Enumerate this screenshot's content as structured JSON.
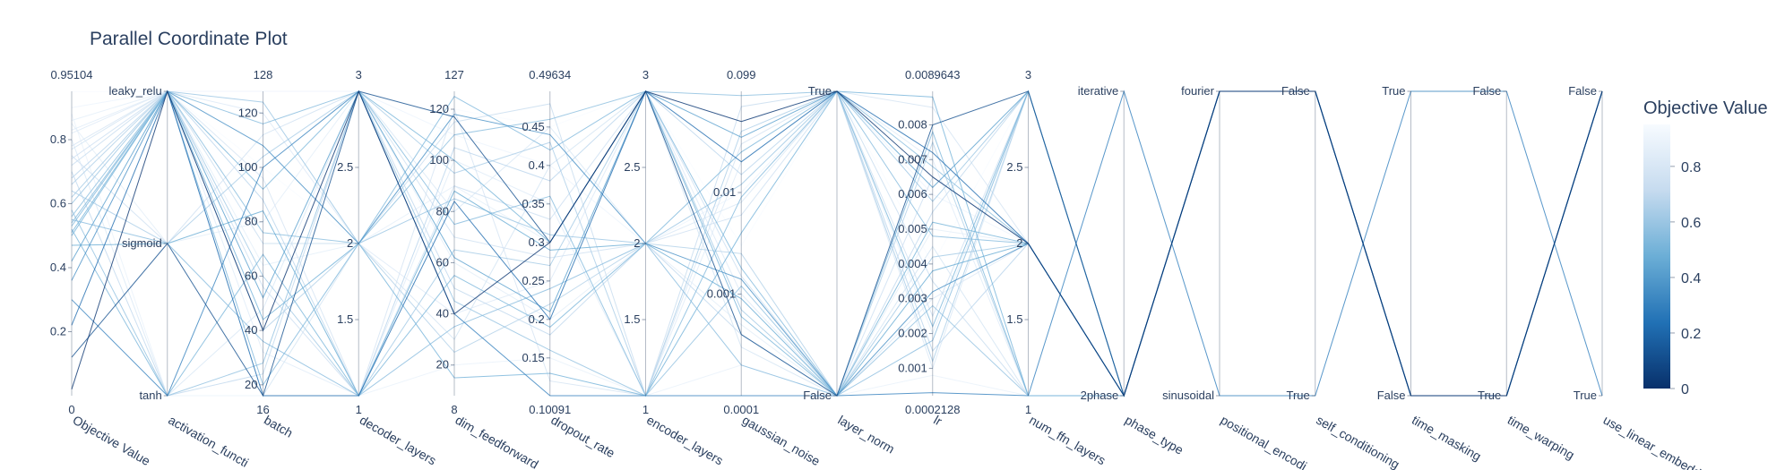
{
  "chart_data": {
    "type": "parallel_coordinates",
    "title": "Parallel Coordinate Plot",
    "colorscale": "Blues",
    "colorbar": {
      "title": "Objective Value",
      "ticks": [
        "0",
        "0.2",
        "0.4",
        "0.6",
        "0.8"
      ],
      "range": [
        0,
        0.95104
      ]
    },
    "axes": [
      {
        "name": "Objective Value",
        "label": "Objective Value",
        "kind": "numeric",
        "range": [
          0,
          0.95104
        ],
        "min_label": "0",
        "max_label": "0.95104",
        "ticks": [
          {
            "v": 0.2,
            "t": "0.2"
          },
          {
            "v": 0.4,
            "t": "0.4"
          },
          {
            "v": 0.6,
            "t": "0.6"
          },
          {
            "v": 0.8,
            "t": "0.8"
          }
        ]
      },
      {
        "name": "activation_function",
        "label": "activation_functi",
        "kind": "categorical",
        "categories": [
          "tanh",
          "sigmoid",
          "leaky_relu"
        ],
        "ticks": []
      },
      {
        "name": "batch",
        "label": "batch",
        "kind": "numeric",
        "range": [
          16,
          128
        ],
        "min_label": "16",
        "max_label": "128",
        "ticks": [
          {
            "v": 20,
            "t": "20"
          },
          {
            "v": 40,
            "t": "40"
          },
          {
            "v": 60,
            "t": "60"
          },
          {
            "v": 80,
            "t": "80"
          },
          {
            "v": 100,
            "t": "100"
          },
          {
            "v": 120,
            "t": "120"
          }
        ]
      },
      {
        "name": "decoder_layers",
        "label": "decoder_layers",
        "kind": "numeric",
        "range": [
          1,
          3
        ],
        "min_label": "1",
        "max_label": "3",
        "ticks": [
          {
            "v": 1.5,
            "t": "1.5"
          },
          {
            "v": 2,
            "t": "2"
          },
          {
            "v": 2.5,
            "t": "2.5"
          }
        ]
      },
      {
        "name": "dim_feedforward",
        "label": "dim_feedforward",
        "kind": "numeric",
        "range": [
          8,
          127
        ],
        "min_label": "8",
        "max_label": "127",
        "ticks": [
          {
            "v": 20,
            "t": "20"
          },
          {
            "v": 40,
            "t": "40"
          },
          {
            "v": 60,
            "t": "60"
          },
          {
            "v": 80,
            "t": "80"
          },
          {
            "v": 100,
            "t": "100"
          },
          {
            "v": 120,
            "t": "120"
          }
        ]
      },
      {
        "name": "dropout_rate",
        "label": "dropout_rate",
        "kind": "numeric",
        "range": [
          0.10091,
          0.49634
        ],
        "min_label": "0.10091",
        "max_label": "0.49634",
        "ticks": [
          {
            "v": 0.15,
            "t": "0.15"
          },
          {
            "v": 0.2,
            "t": "0.2"
          },
          {
            "v": 0.25,
            "t": "0.25"
          },
          {
            "v": 0.3,
            "t": "0.3"
          },
          {
            "v": 0.35,
            "t": "0.35"
          },
          {
            "v": 0.4,
            "t": "0.4"
          },
          {
            "v": 0.45,
            "t": "0.45"
          }
        ]
      },
      {
        "name": "encoder_layers",
        "label": "encoder_layers",
        "kind": "numeric",
        "range": [
          1,
          3
        ],
        "min_label": "1",
        "max_label": "3",
        "ticks": [
          {
            "v": 1.5,
            "t": "1.5"
          },
          {
            "v": 2,
            "t": "2"
          },
          {
            "v": 2.5,
            "t": "2.5"
          }
        ]
      },
      {
        "name": "gaussian_noise",
        "label": "gaussian_noise",
        "kind": "log",
        "range": [
          0.0001,
          0.099
        ],
        "min_label": "0.0001",
        "max_label": "0.099",
        "ticks": [
          {
            "v": 0.001,
            "t": "0.001"
          },
          {
            "v": 0.01,
            "t": "0.01"
          }
        ]
      },
      {
        "name": "layer_norm",
        "label": "layer_norm",
        "kind": "categorical",
        "categories": [
          "False",
          "True"
        ],
        "ticks": []
      },
      {
        "name": "lr",
        "label": "lr",
        "kind": "numeric",
        "range": [
          0.0002128,
          0.0089643
        ],
        "min_label": "0.0002128",
        "max_label": "0.0089643",
        "ticks": [
          {
            "v": 0.001,
            "t": "0.001"
          },
          {
            "v": 0.002,
            "t": "0.002"
          },
          {
            "v": 0.003,
            "t": "0.003"
          },
          {
            "v": 0.004,
            "t": "0.004"
          },
          {
            "v": 0.005,
            "t": "0.005"
          },
          {
            "v": 0.006,
            "t": "0.006"
          },
          {
            "v": 0.007,
            "t": "0.007"
          },
          {
            "v": 0.008,
            "t": "0.008"
          }
        ]
      },
      {
        "name": "num_ffn_layers",
        "label": "num_ffn_layers",
        "kind": "numeric",
        "range": [
          1,
          3
        ],
        "min_label": "1",
        "max_label": "3",
        "ticks": [
          {
            "v": 1.5,
            "t": "1.5"
          },
          {
            "v": 2,
            "t": "2"
          },
          {
            "v": 2.5,
            "t": "2.5"
          }
        ]
      },
      {
        "name": "phase_type",
        "label": "phase_type",
        "kind": "categorical",
        "categories": [
          "2phase",
          "iterative"
        ],
        "ticks": []
      },
      {
        "name": "positional_encoding",
        "label": "positional_encodi",
        "kind": "categorical",
        "categories": [
          "sinusoidal",
          "fourier"
        ],
        "ticks": []
      },
      {
        "name": "self_conditioning",
        "label": "self_conditioning",
        "kind": "categorical",
        "categories": [
          "True",
          "False"
        ],
        "ticks": []
      },
      {
        "name": "time_masking",
        "label": "time_masking",
        "kind": "categorical",
        "categories": [
          "False",
          "True"
        ],
        "ticks": []
      },
      {
        "name": "time_warping",
        "label": "time_warping",
        "kind": "categorical",
        "categories": [
          "True",
          "False"
        ],
        "ticks": []
      },
      {
        "name": "use_linear_embedding",
        "label": "use_linear_embedd",
        "kind": "categorical",
        "categories": [
          "True",
          "False"
        ],
        "ticks": []
      }
    ],
    "trials": [
      [
        0.95,
        2,
        100,
        2,
        120,
        0.45,
        3,
        0.003,
        1,
        0.004,
        3,
        0,
        1,
        1,
        0,
        0,
        1
      ],
      [
        0.9,
        2,
        128,
        3,
        110,
        0.4,
        2,
        0.01,
        1,
        0.006,
        2,
        0,
        1,
        1,
        0,
        0,
        1
      ],
      [
        0.88,
        0,
        16,
        1,
        20,
        0.15,
        1,
        0.0002,
        0,
        0.0008,
        1,
        1,
        0,
        0,
        1,
        1,
        0
      ],
      [
        0.86,
        2,
        64,
        2,
        90,
        0.3,
        3,
        0.05,
        1,
        0.002,
        3,
        0,
        1,
        1,
        0,
        0,
        1
      ],
      [
        0.85,
        1,
        80,
        3,
        60,
        0.2,
        2,
        0.0005,
        0,
        0.005,
        2,
        0,
        1,
        1,
        0,
        0,
        1
      ],
      [
        0.83,
        2,
        32,
        1,
        100,
        0.35,
        1,
        0.02,
        1,
        0.007,
        1,
        0,
        1,
        1,
        0,
        0,
        1
      ],
      [
        0.82,
        2,
        120,
        2,
        40,
        0.25,
        3,
        0.001,
        0,
        0.003,
        2,
        0,
        1,
        1,
        0,
        0,
        1
      ],
      [
        0.8,
        0,
        48,
        3,
        80,
        0.45,
        2,
        0.008,
        1,
        0.001,
        3,
        0,
        1,
        1,
        0,
        0,
        1
      ],
      [
        0.78,
        2,
        96,
        1,
        120,
        0.12,
        1,
        0.03,
        1,
        0.0085,
        2,
        0,
        1,
        1,
        0,
        0,
        1
      ],
      [
        0.77,
        2,
        16,
        2,
        30,
        0.4,
        3,
        0.0003,
        0,
        0.0045,
        1,
        0,
        1,
        1,
        0,
        0,
        1
      ],
      [
        0.75,
        1,
        112,
        3,
        70,
        0.28,
        2,
        0.006,
        1,
        0.0025,
        3,
        0,
        1,
        1,
        0,
        0,
        1
      ],
      [
        0.74,
        2,
        56,
        1,
        90,
        0.33,
        3,
        0.0015,
        0,
        0.0065,
        2,
        0,
        1,
        1,
        0,
        0,
        1
      ],
      [
        0.72,
        2,
        72,
        2,
        115,
        0.48,
        1,
        0.07,
        1,
        0.0035,
        1,
        0,
        1,
        1,
        0,
        0,
        1
      ],
      [
        0.7,
        0,
        24,
        3,
        50,
        0.18,
        2,
        0.0004,
        0,
        0.0055,
        3,
        0,
        1,
        1,
        0,
        0,
        1
      ],
      [
        0.68,
        2,
        88,
        1,
        105,
        0.38,
        3,
        0.015,
        1,
        0.0015,
        2,
        0,
        1,
        1,
        0,
        0,
        1
      ],
      [
        0.66,
        2,
        40,
        2,
        25,
        0.22,
        2,
        0.0025,
        0,
        0.0075,
        1,
        0,
        1,
        1,
        0,
        0,
        1
      ],
      [
        0.64,
        1,
        104,
        3,
        95,
        0.43,
        1,
        0.04,
        1,
        0.0012,
        3,
        0,
        1,
        1,
        0,
        0,
        1
      ],
      [
        0.62,
        2,
        60,
        1,
        65,
        0.27,
        3,
        0.0007,
        0,
        0.0042,
        2,
        0,
        1,
        1,
        0,
        0,
        1
      ],
      [
        0.6,
        2,
        124,
        2,
        85,
        0.31,
        2,
        0.012,
        1,
        0.0058,
        3,
        0,
        1,
        1,
        0,
        0,
        1
      ],
      [
        0.58,
        0,
        28,
        3,
        45,
        0.16,
        1,
        0.0012,
        0,
        0.0028,
        1,
        0,
        1,
        1,
        0,
        0,
        1
      ],
      [
        0.56,
        2,
        76,
        2,
        110,
        0.46,
        3,
        0.09,
        1,
        0.0068,
        2,
        0,
        1,
        1,
        0,
        0,
        1
      ],
      [
        0.55,
        1,
        36,
        1,
        35,
        0.24,
        2,
        0.0002,
        0,
        0.0018,
        3,
        0,
        1,
        1,
        0,
        0,
        1
      ],
      [
        0.54,
        2,
        116,
        3,
        75,
        0.36,
        1,
        0.009,
        1,
        0.0048,
        2,
        0,
        1,
        1,
        0,
        0,
        1
      ],
      [
        0.53,
        2,
        20,
        2,
        125,
        0.42,
        3,
        0.0018,
        0,
        0.0078,
        1,
        0,
        1,
        1,
        0,
        0,
        1
      ],
      [
        0.52,
        0,
        68,
        1,
        55,
        0.19,
        2,
        0.025,
        1,
        0.0022,
        3,
        0,
        1,
        1,
        0,
        0,
        1
      ],
      [
        0.51,
        2,
        92,
        3,
        100,
        0.3,
        3,
        0.0006,
        0,
        0.0052,
        2,
        0,
        1,
        1,
        0,
        0,
        1
      ],
      [
        0.5,
        2,
        44,
        2,
        15,
        0.13,
        1,
        0.004,
        1,
        0.0088,
        1,
        0,
        1,
        1,
        0,
        0,
        1
      ],
      [
        0.47,
        1,
        84,
        1,
        88,
        0.29,
        2,
        0.0009,
        0,
        0.0038,
        2,
        0,
        1,
        1,
        0,
        0,
        1
      ],
      [
        0.42,
        2,
        52,
        3,
        62,
        0.21,
        3,
        0.035,
        1,
        0.0062,
        3,
        0,
        1,
        1,
        0,
        0,
        1
      ],
      [
        0.36,
        2,
        108,
        2,
        118,
        0.44,
        2,
        0.0014,
        0,
        0.0032,
        2,
        0,
        1,
        1,
        0,
        0,
        1
      ],
      [
        0.3,
        0,
        100,
        3,
        40,
        0.1,
        1,
        0.0001,
        0,
        0.0003,
        1,
        1,
        0,
        0,
        1,
        1,
        0
      ],
      [
        0.22,
        2,
        16,
        1,
        84,
        0.2,
        3,
        0.02,
        1,
        0.0072,
        2,
        0,
        1,
        1,
        0,
        0,
        1
      ],
      [
        0.12,
        1,
        16,
        3,
        117,
        0.3,
        3,
        0.0004,
        0,
        0.008,
        3,
        0,
        1,
        1,
        0,
        0,
        1
      ],
      [
        0.02,
        2,
        40,
        3,
        40,
        0.3,
        3,
        0.05,
        1,
        0.0065,
        2,
        0,
        1,
        1,
        0,
        0,
        1
      ]
    ]
  }
}
